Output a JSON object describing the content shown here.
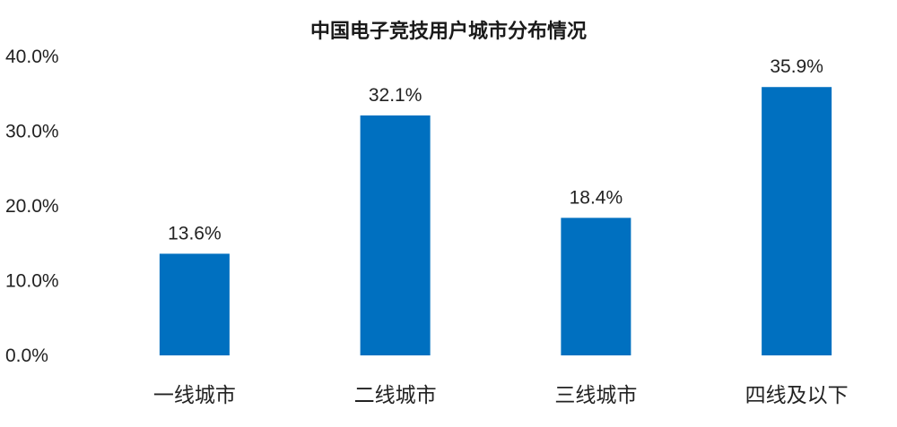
{
  "chart_data": {
    "type": "bar",
    "title": "中国电子竞技用户城市分布情况",
    "xlabel": "",
    "ylabel": "",
    "categories": [
      "一线城市",
      "二线城市",
      "三线城市",
      "四线及以下"
    ],
    "values": [
      13.6,
      32.1,
      18.4,
      35.9
    ],
    "value_labels": [
      "13.6%",
      "32.1%",
      "18.4%",
      "35.9%"
    ],
    "ylim": [
      0,
      40
    ],
    "yticks": [
      0,
      10,
      20,
      30,
      40
    ],
    "ytick_labels": [
      "0.0%",
      "10.0%",
      "20.0%",
      "30.0%",
      "40.0%"
    ],
    "grid": false,
    "legend": "none",
    "bar_color": "#0070C0"
  }
}
